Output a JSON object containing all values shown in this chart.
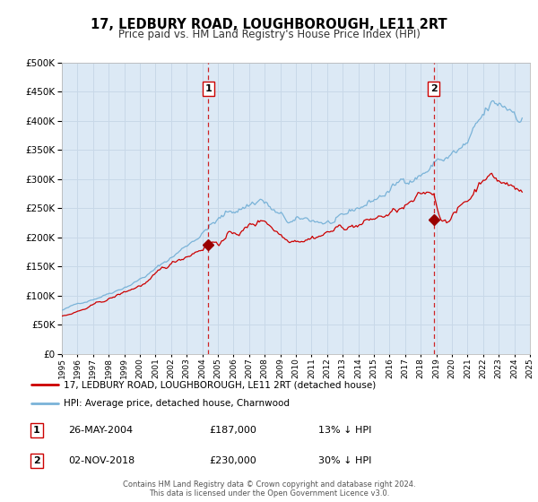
{
  "title": "17, LEDBURY ROAD, LOUGHBOROUGH, LE11 2RT",
  "subtitle": "Price paid vs. HM Land Registry's House Price Index (HPI)",
  "legend_property": "17, LEDBURY ROAD, LOUGHBOROUGH, LE11 2RT (detached house)",
  "legend_hpi": "HPI: Average price, detached house, Charnwood",
  "annotation1_label": "1",
  "annotation1_date": "26-MAY-2004",
  "annotation1_price": "£187,000",
  "annotation1_hpi": "13% ↓ HPI",
  "annotation2_label": "2",
  "annotation2_date": "02-NOV-2018",
  "annotation2_price": "£230,000",
  "annotation2_hpi": "30% ↓ HPI",
  "copyright_line1": "Contains HM Land Registry data © Crown copyright and database right 2024.",
  "copyright_line2": "This data is licensed under the Open Government Licence v3.0.",
  "vline1_year": 2004.38,
  "vline2_year": 2018.84,
  "marker1_year": 2004.38,
  "marker1_value": 187000,
  "marker2_year": 2018.84,
  "marker2_value": 230000,
  "xmin": 1995,
  "xmax": 2025,
  "ymin": 0,
  "ymax": 500000,
  "yticks": [
    0,
    50000,
    100000,
    150000,
    200000,
    250000,
    300000,
    350000,
    400000,
    450000,
    500000
  ],
  "plot_bg_color": "#dce9f5",
  "fig_bg_color": "#ffffff",
  "grid_color": "#c8d8e8",
  "hpi_line_color": "#7ab3d8",
  "property_line_color": "#cc0000",
  "marker_color": "#990000",
  "vline_color": "#cc0000",
  "box_edge_color": "#cc0000",
  "ann_label_color": "#cc0000"
}
